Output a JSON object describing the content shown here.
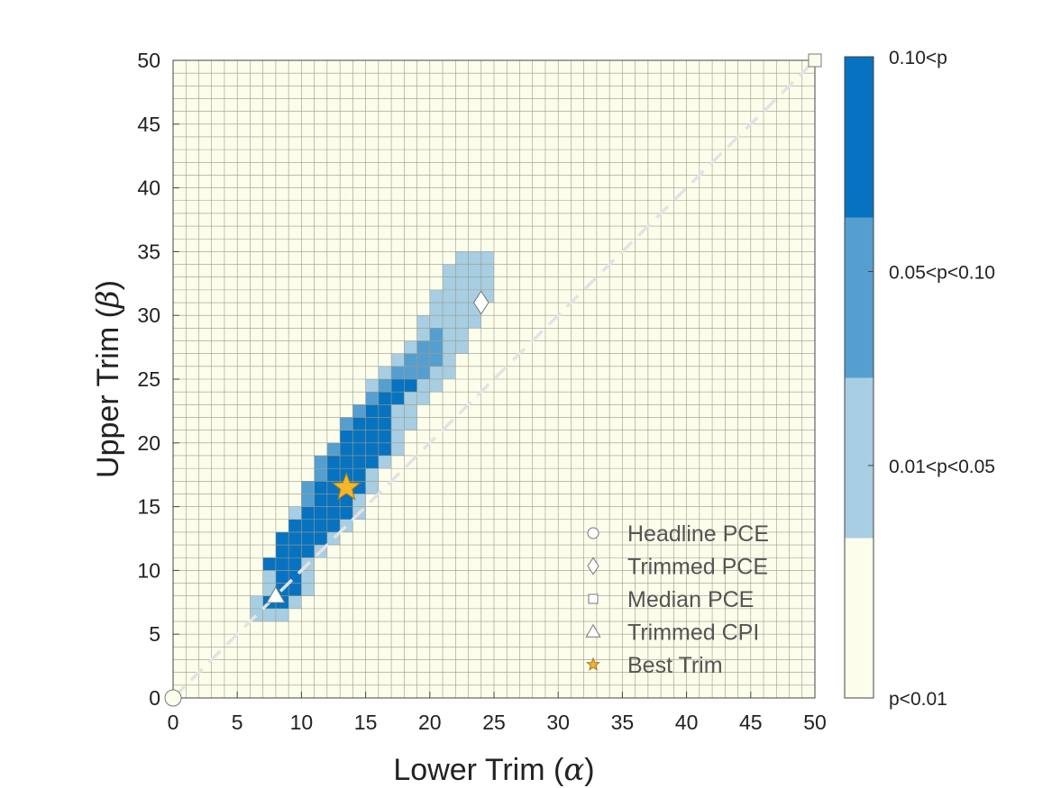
{
  "chart_data": {
    "type": "heatmap",
    "xlabel_text": "Lower Trim (",
    "xlabel_symbol": "α",
    "xlabel_close": ")",
    "ylabel_text": "Upper Trim (",
    "ylabel_symbol": "β",
    "ylabel_close": ")",
    "xlim": [
      0,
      50
    ],
    "ylim": [
      0,
      50
    ],
    "cell_size": 1,
    "x_ticks": [
      "0",
      "5",
      "10",
      "15",
      "20",
      "25",
      "30",
      "35",
      "40",
      "45",
      "50"
    ],
    "y_ticks": [
      "0",
      "5",
      "10",
      "15",
      "20",
      "25",
      "30",
      "35",
      "40",
      "45",
      "50"
    ],
    "colorbar": {
      "levels": [
        "p<0.01",
        "0.01<p<0.05",
        "0.05<p<0.10",
        "0.10<p"
      ],
      "colors": [
        "#FDFDEC",
        "#A7CEE2",
        "#559FD0",
        "#0773C0"
      ]
    },
    "grid_color": "#9a9a8a",
    "significance_rows_by_upper_trim": [
      {
        "beta": 6,
        "level1": [
          6,
          8
        ]
      },
      {
        "beta": 7,
        "level1": [
          6,
          9
        ],
        "level3": [
          7,
          8
        ]
      },
      {
        "beta": 8,
        "level1": [
          7,
          10
        ],
        "level3": [
          8,
          9
        ]
      },
      {
        "beta": 9,
        "level1": [
          7,
          10
        ],
        "level3": [
          8,
          9
        ]
      },
      {
        "beta": 10,
        "level1": [
          7,
          10
        ],
        "level3": [
          7,
          9
        ]
      },
      {
        "beta": 11,
        "level1": [
          8,
          11
        ],
        "level3": [
          8,
          10
        ]
      },
      {
        "beta": 12,
        "level1": [
          8,
          12
        ],
        "level3": [
          8,
          11
        ]
      },
      {
        "beta": 13,
        "level1": [
          9,
          13
        ],
        "level3": [
          9,
          12
        ]
      },
      {
        "beta": 14,
        "level1": [
          9,
          14
        ],
        "level3": [
          10,
          13
        ]
      },
      {
        "beta": 15,
        "level1": [
          10,
          14
        ],
        "level2": [
          10,
          10
        ],
        "level3": [
          11,
          13
        ]
      },
      {
        "beta": 16,
        "level1": [
          10,
          15
        ],
        "level2": [
          10,
          10
        ],
        "level3": [
          11,
          14
        ]
      },
      {
        "beta": 17,
        "level1": [
          11,
          15
        ],
        "level2": [
          11,
          11
        ],
        "level3": [
          12,
          14
        ]
      },
      {
        "beta": 18,
        "level1": [
          11,
          16
        ],
        "level2": [
          11,
          11
        ],
        "level3": [
          12,
          15
        ]
      },
      {
        "beta": 19,
        "level1": [
          12,
          17
        ],
        "level2": [
          12,
          12
        ],
        "level3": [
          13,
          16
        ]
      },
      {
        "beta": 20,
        "level1": [
          13,
          17
        ],
        "level2": [
          13,
          13
        ],
        "level3": [
          13,
          16
        ]
      },
      {
        "beta": 21,
        "level1": [
          13,
          18
        ],
        "level2": [
          13,
          14
        ],
        "level3": [
          14,
          16
        ]
      },
      {
        "beta": 22,
        "level1": [
          14,
          18
        ],
        "level2": [
          14,
          15
        ],
        "level3": [
          15,
          16
        ]
      },
      {
        "beta": 23,
        "level1": [
          15,
          19
        ],
        "level2": [
          15,
          16
        ],
        "level3": [
          16,
          17
        ]
      },
      {
        "beta": 24,
        "level1": [
          15,
          20
        ],
        "level2": [
          16,
          18
        ],
        "level3": [
          17,
          18
        ]
      },
      {
        "beta": 25,
        "level1": [
          16,
          21
        ],
        "level2": [
          17,
          19
        ]
      },
      {
        "beta": 26,
        "level1": [
          17,
          21
        ],
        "level2": [
          18,
          20
        ]
      },
      {
        "beta": 27,
        "level1": [
          18,
          22
        ],
        "level2": [
          19,
          20
        ]
      },
      {
        "beta": 28,
        "level1": [
          19,
          22
        ],
        "level2": [
          20,
          20
        ]
      },
      {
        "beta": 29,
        "level1": [
          19,
          23
        ]
      },
      {
        "beta": 30,
        "level1": [
          20,
          23
        ]
      },
      {
        "beta": 31,
        "level1": [
          20,
          24
        ]
      },
      {
        "beta": 32,
        "level1": [
          21,
          24
        ]
      },
      {
        "beta": 33,
        "level1": [
          21,
          24
        ]
      },
      {
        "beta": 34,
        "level1": [
          22,
          24
        ]
      }
    ],
    "diagonal_line": {
      "from": [
        0,
        0
      ],
      "to": [
        50,
        50
      ],
      "style": "dashed",
      "color": "#e3e3e3"
    },
    "markers": [
      {
        "name": "Headline PCE",
        "shape": "circle",
        "x": 0,
        "y": 0,
        "fill": "#FDFDEC"
      },
      {
        "name": "Trimmed PCE",
        "shape": "diamond",
        "x": 24,
        "y": 31,
        "fill": "#FFFFFF"
      },
      {
        "name": "Median PCE",
        "shape": "square",
        "x": 50,
        "y": 50,
        "fill": "#FDFDEC"
      },
      {
        "name": "Trimmed CPI",
        "shape": "triangle",
        "x": 8,
        "y": 8,
        "fill": "#FFFFFF"
      },
      {
        "name": "Best Trim",
        "shape": "star",
        "x": 13.5,
        "y": 16.5,
        "fill": "#F7B52C"
      }
    ],
    "legend": {
      "location": "bottom-right",
      "entries": [
        "Headline PCE",
        "Trimmed PCE",
        "Median PCE",
        "Trimmed CPI",
        "Best Trim"
      ]
    }
  }
}
